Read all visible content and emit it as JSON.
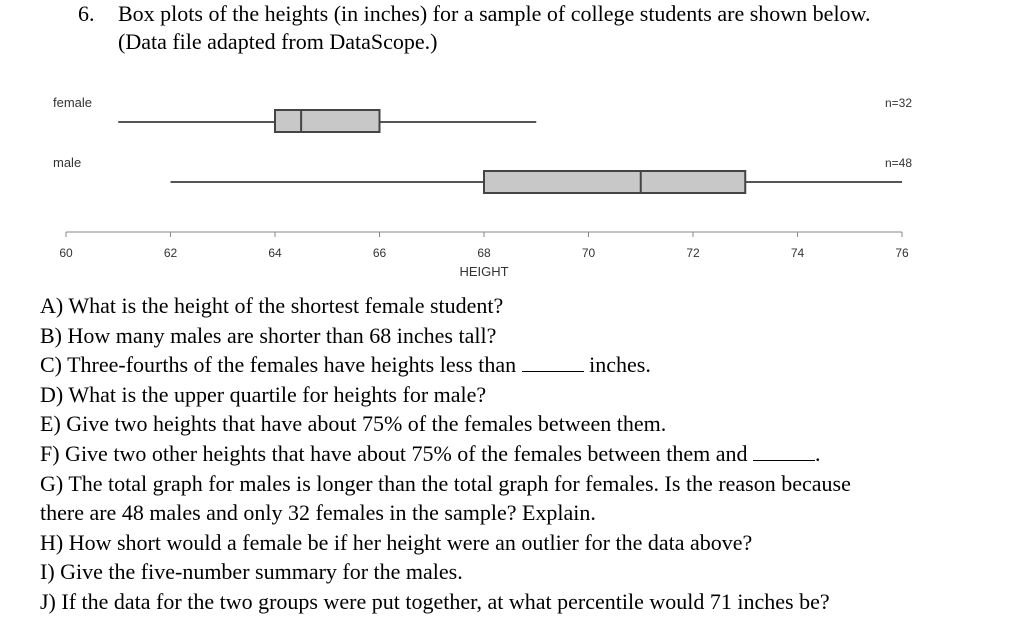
{
  "problem": {
    "number": "6.",
    "line1": "Box plots of the heights (in inches) for a sample of college students are shown below.",
    "line2": "(Data file adapted from DataScope.)"
  },
  "chart_data": {
    "type": "boxplot",
    "xlabel": "HEIGHT",
    "xlim": [
      60,
      76
    ],
    "ticks": [
      60,
      62,
      64,
      66,
      68,
      70,
      72,
      74,
      76
    ],
    "tick_labels": [
      "60",
      "62",
      "64",
      "66",
      "68",
      "70",
      "72",
      "74",
      "76"
    ],
    "series": [
      {
        "name": "female",
        "n_label": "n=32",
        "min": 61,
        "q1": 64,
        "median": 64.5,
        "q3": 66,
        "max": 69
      },
      {
        "name": "male",
        "n_label": "n=48",
        "min": 62,
        "q1": 68,
        "median": 71,
        "q3": 73,
        "max": 76
      }
    ]
  },
  "questions": [
    {
      "text": "A) What is the height of the shortest female student?"
    },
    {
      "text": "B) How many males are shorter than 68 inches tall?"
    },
    {
      "text": "C) Three-fourths of the females have heights less than ",
      "after": " inches."
    },
    {
      "text": "D) What is the upper quartile for heights for male?"
    },
    {
      "text": "E) Give two heights that have about 75% of the females between them."
    },
    {
      "text": "F) Give two other heights that have about 75% of the females between them and ",
      "after": "."
    },
    {
      "text": "G) The total graph for males is longer than the total graph for females. Is the reason because"
    },
    {
      "text": "there are 48 males and only 32 females in the sample? Explain."
    },
    {
      "text": "H) How short would a female be if her height were an outlier for the data above?"
    },
    {
      "text": "I) Give the five-number summary for the males."
    },
    {
      "text": "J) If the data for the two groups were put together, at what percentile would 71 inches be?"
    }
  ]
}
